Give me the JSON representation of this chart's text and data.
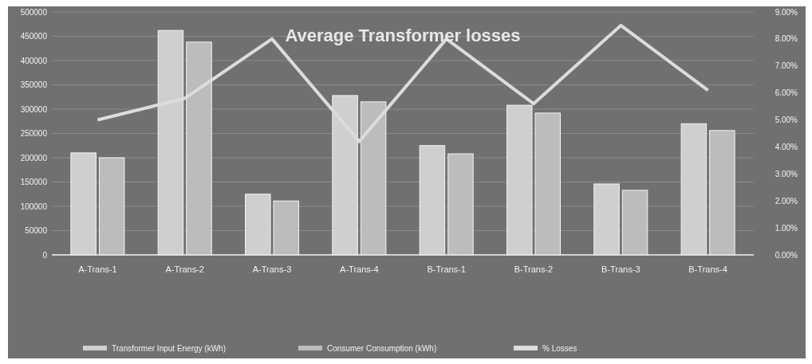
{
  "chart_data": {
    "type": "bar",
    "title": "Average Transformer losses",
    "categories": [
      "A-Trans-1",
      "A-Trans-2",
      "A-Trans-3",
      "A-Trans-4",
      "B-Trans-1",
      "B-Trans-2",
      "B-Trans-3",
      "B-Trans-4"
    ],
    "series": [
      {
        "name": "Transformer Input Energy (kWh)",
        "color": "#cfcfcf",
        "values": [
          210000,
          462000,
          125000,
          328000,
          225000,
          308000,
          146000,
          270000
        ]
      },
      {
        "name": "Consumer Consumption (kWh)",
        "color": "#bcbcbc",
        "values": [
          200000,
          438000,
          111000,
          315000,
          208000,
          292000,
          133000,
          256000
        ]
      },
      {
        "name": "% Losses",
        "type": "line",
        "axis": "y2",
        "color": "#dcdcdc",
        "values": [
          5.0,
          5.8,
          8.0,
          4.2,
          8.0,
          5.6,
          8.5,
          6.1
        ]
      }
    ],
    "ylim": [
      0,
      500000
    ],
    "yticks": [
      0,
      50000,
      100000,
      150000,
      200000,
      250000,
      300000,
      350000,
      400000,
      450000,
      500000
    ],
    "y2lim": [
      0,
      9
    ],
    "y2ticks": [
      {
        "value": 0,
        "label": "0.00%"
      },
      {
        "value": 1,
        "label": "1.00%"
      },
      {
        "value": 2,
        "label": "2.00%"
      },
      {
        "value": 3,
        "label": "3.00%"
      },
      {
        "value": 4,
        "label": "4.00%"
      },
      {
        "value": 5,
        "label": "5.00%"
      },
      {
        "value": 6,
        "label": "6.00%"
      },
      {
        "value": 7,
        "label": "7.00%"
      },
      {
        "value": 8,
        "label": "8.00%"
      },
      {
        "value": 9,
        "label": "9.00%"
      }
    ],
    "grid": "y",
    "legend": "bottom",
    "marker": "none",
    "line_style": "solid"
  }
}
